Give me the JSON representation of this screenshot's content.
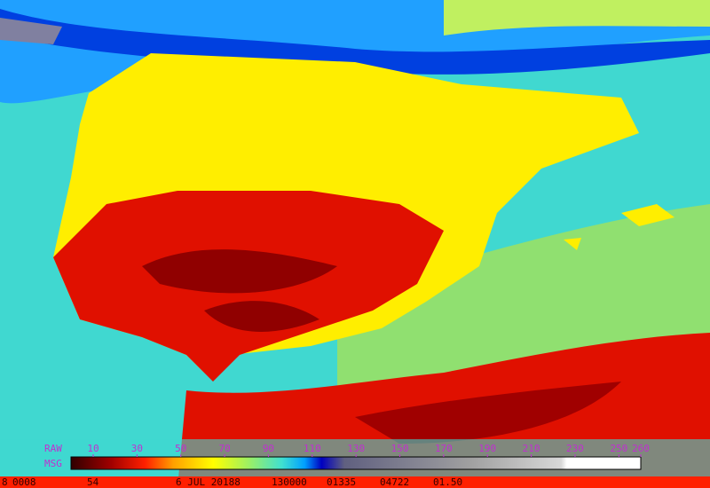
{
  "colorbar": {
    "raw_label": "RAW",
    "msg_label": "MSG",
    "ticks": [
      10,
      30,
      50,
      70,
      90,
      110,
      130,
      150,
      170,
      190,
      210,
      230,
      250,
      260
    ]
  },
  "footer": {
    "fields": [
      "8",
      "0008",
      "54",
      "6 JUL 20188",
      "130000",
      "01335",
      "04722",
      "01.50"
    ]
  }
}
